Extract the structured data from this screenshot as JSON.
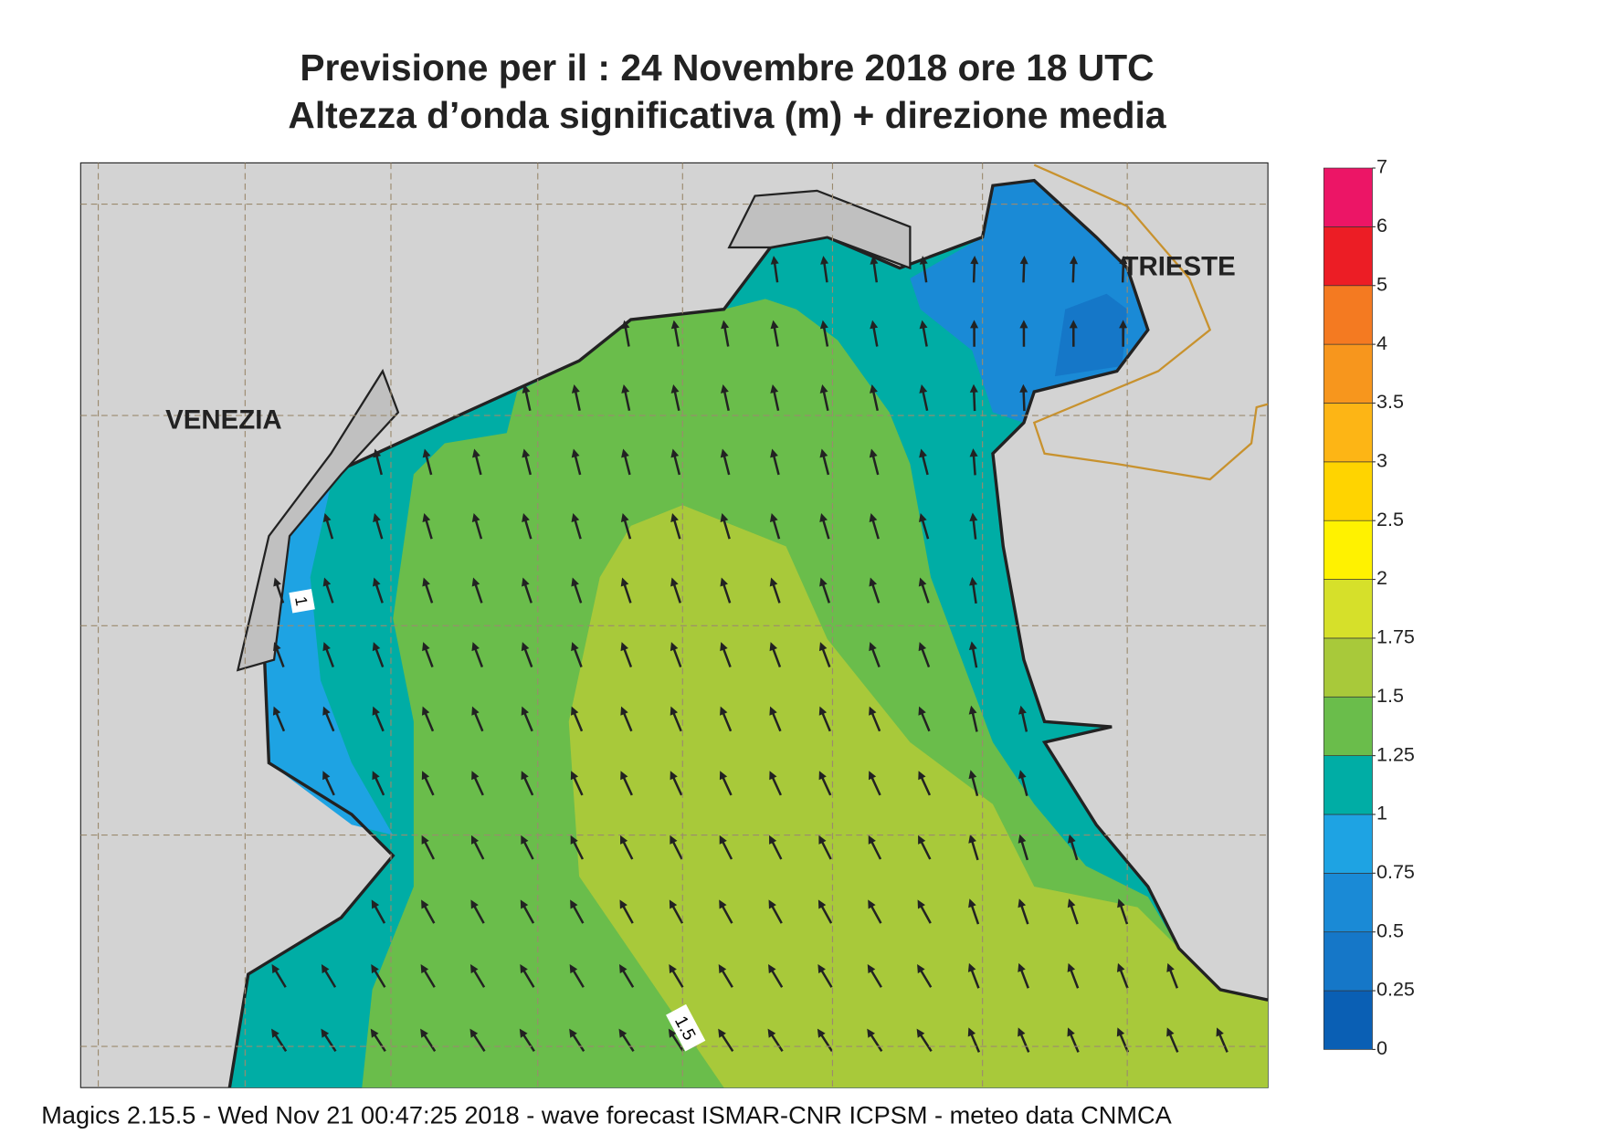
{
  "title": {
    "line1": "Previsione per il  :  24 Novembre  2018   ore 18 UTC",
    "line2": "Altezza d’onda significativa (m) + direzione media"
  },
  "map": {
    "cities": [
      "VENEZIA",
      "TRIESTE"
    ],
    "contour_labels": [
      "1",
      "1.5"
    ]
  },
  "legend": {
    "levels": [
      0,
      0.25,
      0.5,
      0.75,
      1,
      1.25,
      1.5,
      1.75,
      2,
      2.5,
      3,
      3.5,
      4,
      5,
      6,
      7
    ],
    "colors": [
      "#0a5fb4",
      "#1577c8",
      "#1a8ad6",
      "#1ea3e3",
      "#00ada5",
      "#6abd4b",
      "#a8c93a",
      "#d6e02a",
      "#fff200",
      "#ffd400",
      "#fdb515",
      "#f7961d",
      "#f47a21",
      "#ec1d25",
      "#ec1566"
    ]
  },
  "footer": "Magics 2.15.5 - Wed Nov 21 00:47:25 2018 - wave forecast  ISMAR-CNR  ICPSM - meteo data   CNMCA"
}
